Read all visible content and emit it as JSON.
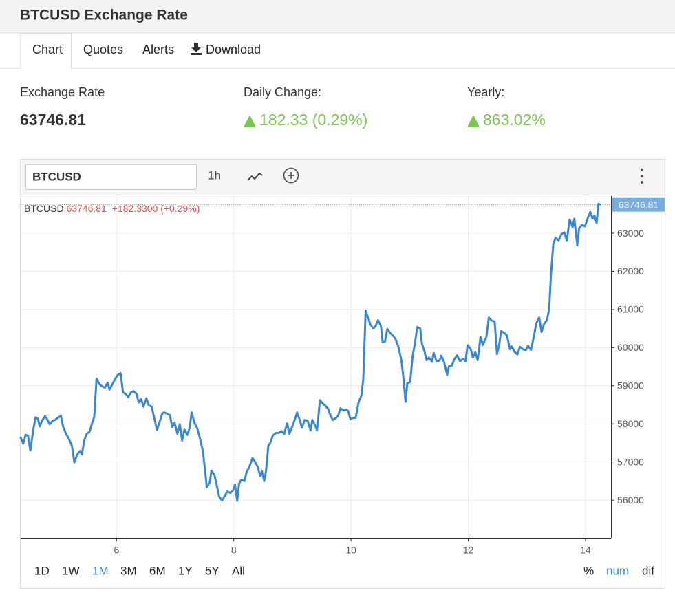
{
  "header": {
    "title": "BTCUSD Exchange Rate"
  },
  "tabs": [
    "Chart",
    "Quotes",
    "Alerts",
    "Download"
  ],
  "stats": [
    {
      "label": "Exchange Rate",
      "value": "63746.81"
    },
    {
      "label": "Daily Change:",
      "value": "182.33 (0.29%)"
    },
    {
      "label": "Yearly:",
      "value": "863.02%"
    }
  ],
  "toolbar": {
    "symbol": "BTCUSD",
    "interval": "1h"
  },
  "ranges": [
    "1D",
    "1W",
    "1M",
    "3M",
    "6M",
    "1Y",
    "5Y",
    "All"
  ],
  "active_range": 2,
  "scales": [
    "%",
    "num",
    "dif"
  ],
  "active_scale": 1,
  "chart_data": {
    "type": "line",
    "symbol": "BTCUSD",
    "last_price": 63746.81,
    "change_label": "+182.3300 (+0.29%)",
    "color": "#3d88cb",
    "grid": true,
    "xlim": [
      4.365,
      14.435
    ],
    "xticks": [
      6,
      8,
      10,
      12,
      14
    ],
    "ylim": [
      55010,
      63975
    ],
    "yticks": [
      56000,
      57000,
      58000,
      59000,
      60000,
      61000,
      62000,
      63000
    ],
    "x": [
      4.36,
      4.41,
      4.45,
      4.49,
      4.53,
      4.58,
      4.62,
      4.66,
      4.69,
      4.73,
      4.78,
      4.81,
      4.86,
      4.91,
      4.95,
      5.0,
      5.05,
      5.09,
      5.14,
      5.19,
      5.24,
      5.28,
      5.33,
      5.38,
      5.41,
      5.45,
      5.49,
      5.54,
      5.59,
      5.62,
      5.66,
      5.71,
      5.75,
      5.8,
      5.85,
      5.88,
      5.93,
      5.98,
      6.02,
      6.07,
      6.11,
      6.15,
      6.2,
      6.25,
      6.29,
      6.34,
      6.38,
      6.42,
      6.46,
      6.51,
      6.55,
      6.6,
      6.65,
      6.69,
      6.73,
      6.78,
      6.81,
      6.86,
      6.91,
      6.95,
      6.99,
      7.04,
      7.08,
      7.12,
      7.16,
      7.21,
      7.25,
      7.28,
      7.33,
      7.38,
      7.42,
      7.47,
      7.51,
      7.54,
      7.59,
      7.62,
      7.67,
      7.71,
      7.75,
      7.8,
      7.85,
      7.89,
      7.94,
      7.99,
      8.02,
      8.06,
      8.09,
      8.13,
      8.18,
      8.22,
      8.26,
      8.32,
      8.36,
      8.41,
      8.45,
      8.48,
      8.52,
      8.55,
      8.59,
      8.62,
      8.67,
      8.72,
      8.76,
      8.81,
      8.86,
      8.91,
      8.95,
      9.0,
      9.05,
      9.08,
      9.13,
      9.16,
      9.21,
      9.26,
      9.31,
      9.34,
      9.39,
      9.42,
      9.47,
      9.52,
      9.56,
      9.61,
      9.65,
      9.69,
      9.74,
      9.78,
      9.82,
      9.87,
      9.92,
      9.95,
      9.99,
      10.04,
      10.08,
      10.13,
      10.18,
      10.21,
      10.25,
      10.29,
      10.33,
      10.38,
      10.42,
      10.46,
      10.51,
      10.54,
      10.58,
      10.62,
      10.67,
      10.72,
      10.76,
      10.81,
      10.86,
      10.89,
      10.93,
      10.96,
      11.01,
      11.05,
      11.09,
      11.13,
      11.18,
      11.21,
      11.25,
      11.29,
      11.33,
      11.38,
      11.41,
      11.46,
      11.51,
      11.54,
      11.59,
      11.64,
      11.67,
      11.72,
      11.76,
      11.81,
      11.86,
      11.91,
      11.95,
      11.99,
      12.04,
      12.08,
      12.12,
      12.16,
      12.21,
      12.25,
      12.31,
      12.35,
      12.4,
      12.45,
      12.49,
      12.53,
      12.56,
      12.61,
      12.66,
      12.71,
      12.74,
      12.79,
      12.84,
      12.88,
      12.93,
      12.98,
      13.02,
      13.07,
      13.12,
      13.16,
      13.21,
      13.25,
      13.29,
      13.34,
      13.38,
      13.41,
      13.45,
      13.49,
      13.54,
      13.59,
      13.64,
      13.68,
      13.73,
      13.78,
      13.81,
      13.86,
      13.89,
      13.94,
      13.99,
      14.04,
      14.08,
      14.12,
      14.15,
      14.19,
      14.22,
      14.26
    ],
    "values": [
      57660,
      57480,
      57710,
      57690,
      57300,
      57840,
      58170,
      58130,
      57930,
      58080,
      58200,
      58140,
      57990,
      58080,
      58100,
      58160,
      58210,
      57920,
      57740,
      57600,
      57420,
      56990,
      57200,
      57290,
      57200,
      57560,
      57740,
      57790,
      58050,
      58180,
      59190,
      59040,
      58990,
      58950,
      59080,
      58900,
      59040,
      59190,
      59280,
      59330,
      58830,
      58790,
      58700,
      58830,
      58860,
      58790,
      58560,
      58650,
      58450,
      58670,
      58490,
      58450,
      58110,
      57840,
      58020,
      58270,
      58300,
      58270,
      58230,
      57920,
      58030,
      57740,
      57990,
      57560,
      57850,
      57710,
      57910,
      58300,
      58030,
      57870,
      57640,
      57310,
      56790,
      56340,
      56460,
      56770,
      56660,
      56390,
      56100,
      55990,
      56120,
      56230,
      56190,
      56260,
      56410,
      55980,
      56430,
      56540,
      56500,
      56740,
      56850,
      57100,
      57010,
      56870,
      56630,
      56760,
      56500,
      56760,
      57430,
      57490,
      57700,
      57760,
      57760,
      57810,
      57740,
      58010,
      57740,
      57940,
      58150,
      58300,
      58080,
      57900,
      58100,
      58080,
      57830,
      58100,
      57960,
      57830,
      58620,
      58530,
      58480,
      58390,
      58220,
      58100,
      58150,
      58210,
      58410,
      58350,
      58370,
      58340,
      58120,
      58160,
      58160,
      58570,
      58750,
      59200,
      60970,
      60790,
      60610,
      60500,
      60570,
      60720,
      60570,
      60140,
      60160,
      60490,
      60380,
      60310,
      60220,
      60020,
      59660,
      59260,
      58580,
      59060,
      59100,
      59770,
      60110,
      60540,
      60500,
      60100,
      59920,
      59670,
      59740,
      59630,
      59860,
      59640,
      59660,
      59790,
      59610,
      59280,
      59510,
      59530,
      59690,
      59800,
      59640,
      59710,
      59640,
      60060,
      59970,
      59740,
      59880,
      59670,
      60280,
      60070,
      60280,
      60790,
      60710,
      60680,
      59830,
      60100,
      60430,
      60390,
      60320,
      59960,
      60030,
      59890,
      59820,
      60020,
      59960,
      59930,
      60050,
      59940,
      60300,
      60640,
      60790,
      60410,
      60610,
      60720,
      61000,
      61900,
      62710,
      62890,
      62800,
      62980,
      63020,
      62800,
      63360,
      63160,
      63380,
      62680,
      63130,
      63220,
      63180,
      63400,
      63560,
      63380,
      63470,
      63270,
      63770,
      63750
    ]
  }
}
